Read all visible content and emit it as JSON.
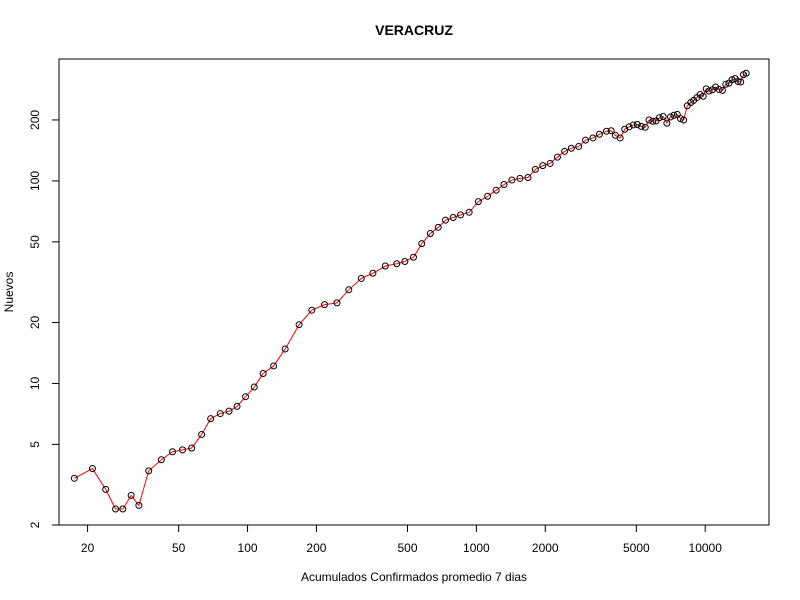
{
  "chart_data": {
    "type": "scatter",
    "title": "VERACRUZ",
    "xlabel": "Acumulados Confirmados promedio  7  dias",
    "ylabel": "Nuevos",
    "x_scale": "log",
    "y_scale": "log",
    "xlim": [
      15,
      19000
    ],
    "ylim": [
      2,
      400
    ],
    "x_ticks": [
      20,
      50,
      100,
      200,
      500,
      1000,
      2000,
      5000,
      10000
    ],
    "x_tick_labels": [
      "20",
      "50",
      "100",
      "200",
      "500",
      "1000",
      "2000",
      "5000",
      "10000"
    ],
    "y_ticks": [
      2,
      5,
      10,
      20,
      50,
      100,
      200
    ],
    "y_tick_labels": [
      "2",
      "5",
      "10",
      "20",
      "50",
      "100",
      "200"
    ],
    "grid": false,
    "line_color": "#ff0000",
    "marker_color": "#000000",
    "series": [
      {
        "x": [
          17.5,
          21,
          24,
          26.5,
          28.5,
          31,
          33.5,
          37,
          42,
          47,
          52,
          57,
          63,
          69,
          76,
          83,
          90,
          98,
          107,
          117,
          130,
          146,
          168,
          191,
          217,
          246,
          277,
          314,
          353,
          400,
          449,
          487,
          531,
          577,
          629,
          681,
          733,
          792,
          853,
          930,
          1020,
          1120,
          1220,
          1320,
          1430,
          1550,
          1680,
          1810,
          1950,
          2100,
          2260,
          2430,
          2600,
          2800,
          3000,
          3230,
          3450,
          3700,
          3880,
          4050,
          4250,
          4450,
          4650,
          4850,
          5050,
          5250,
          5470,
          5680,
          5900,
          6100,
          6300,
          6550,
          6800,
          7050,
          7300,
          7550,
          7800,
          8050,
          8350,
          8650,
          8900,
          9200,
          9500,
          9800,
          10100,
          10400,
          10750,
          11100,
          11500,
          11900,
          12300,
          12700,
          13100,
          13500,
          13900,
          14300,
          14700,
          15100
        ],
        "y": [
          3.4,
          3.8,
          3.0,
          2.4,
          2.4,
          2.8,
          2.5,
          3.7,
          4.2,
          4.6,
          4.7,
          4.8,
          5.6,
          6.7,
          7.1,
          7.3,
          7.7,
          8.6,
          9.6,
          11.2,
          12.2,
          14.8,
          19.5,
          23,
          24.5,
          25,
          29,
          33,
          35,
          38,
          39,
          40,
          42,
          49,
          55,
          59,
          64,
          66,
          68,
          70,
          79,
          84,
          90,
          96,
          101,
          103,
          104,
          114,
          119,
          122,
          131,
          140,
          145,
          148,
          159,
          163,
          170,
          176,
          177,
          168,
          163,
          180,
          185,
          189,
          190,
          186,
          184,
          200,
          197,
          198,
          205,
          208,
          193,
          207,
          211,
          213,
          203,
          200,
          235,
          244,
          250,
          258,
          267,
          262,
          285,
          278,
          282,
          291,
          283,
          280,
          300,
          304,
          316,
          320,
          310,
          308,
          335,
          340
        ]
      }
    ]
  }
}
